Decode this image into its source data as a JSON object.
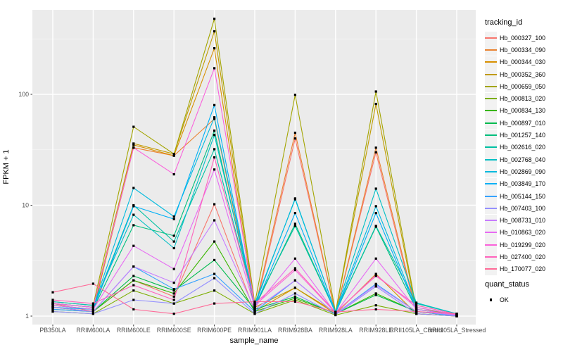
{
  "chart_data": {
    "type": "line",
    "title": "",
    "xlabel": "sample_name",
    "ylabel": "FPKM + 1",
    "y_scale": "log10",
    "y_ticks": [
      1,
      10,
      100
    ],
    "y_minor_ticks": [
      3.1623,
      31.623,
      316.23
    ],
    "ylim": [
      0.84,
      578
    ],
    "grid": true,
    "legend_position": "right",
    "legend_title": "tracking_id",
    "quant_legend": {
      "title": "quant_status",
      "items": [
        "OK"
      ]
    },
    "categories": [
      "PB350LA",
      "RRIM600LA",
      "RRIM600LE",
      "RRIM600SE",
      "RRIM600PE",
      "RRIM901LA",
      "RRIM928BA",
      "RRIM928LA",
      "RRIM928LE",
      "RRII105LA_Control",
      "RRII105LA_Stressed"
    ],
    "series": [
      {
        "name": "Hb_000327_100",
        "color": "#F8766D",
        "values": [
          1.3,
          1.1,
          2.1,
          1.5,
          10.2,
          1.1,
          40,
          1.05,
          30,
          1.05,
          1.0
        ]
      },
      {
        "name": "Hb_000334_090",
        "color": "#EA8331",
        "values": [
          1.25,
          1.15,
          33,
          28,
          60,
          1.15,
          45,
          1.05,
          33,
          1.1,
          1.0
        ]
      },
      {
        "name": "Hb_000344_030",
        "color": "#D89000",
        "values": [
          1.2,
          1.1,
          35,
          28,
          260,
          1.1,
          1.8,
          1.05,
          2.4,
          1.05,
          1.0
        ]
      },
      {
        "name": "Hb_000352_360",
        "color": "#C09B00",
        "values": [
          1.3,
          1.2,
          36,
          29,
          370,
          1.2,
          1.8,
          1.08,
          82,
          1.1,
          1.02
        ]
      },
      {
        "name": "Hb_000659_050",
        "color": "#A3A500",
        "values": [
          1.35,
          1.25,
          51,
          29,
          480,
          1.3,
          99,
          1.08,
          106,
          1.15,
          1.05
        ]
      },
      {
        "name": "Hb_000813_020",
        "color": "#7CAE00",
        "values": [
          1.1,
          1.05,
          1.7,
          1.3,
          1.7,
          1.05,
          1.4,
          1.02,
          1.25,
          1.05,
          1.0
        ]
      },
      {
        "name": "Hb_000834_130",
        "color": "#39B600",
        "values": [
          1.15,
          1.1,
          2.1,
          1.6,
          4.7,
          1.1,
          1.45,
          1.05,
          1.6,
          1.1,
          1.02
        ]
      },
      {
        "name": "Hb_000897_010",
        "color": "#00BB4E",
        "values": [
          1.2,
          1.1,
          2.3,
          1.7,
          3.2,
          1.15,
          1.5,
          1.05,
          1.55,
          1.1,
          1.0
        ]
      },
      {
        "name": "Hb_001257_140",
        "color": "#00BF7D",
        "values": [
          1.25,
          1.15,
          6.6,
          5.3,
          47,
          1.2,
          6.8,
          1.08,
          6.4,
          1.15,
          1.02
        ]
      },
      {
        "name": "Hb_002616_020",
        "color": "#00C1A3",
        "values": [
          1.3,
          1.2,
          10.0,
          4.7,
          32,
          1.25,
          6.5,
          1.08,
          6.5,
          1.3,
          1.05
        ]
      },
      {
        "name": "Hb_002768_040",
        "color": "#00BFC4",
        "values": [
          1.35,
          1.25,
          8.2,
          4.1,
          43,
          1.3,
          11.3,
          1.09,
          14.1,
          1.32,
          1.05
        ]
      },
      {
        "name": "Hb_002869_090",
        "color": "#00BADE",
        "values": [
          1.3,
          1.2,
          14.3,
          7.9,
          62,
          1.25,
          11.5,
          1.08,
          9.8,
          1.2,
          1.03
        ]
      },
      {
        "name": "Hb_003849_170",
        "color": "#00B0F6",
        "values": [
          1.2,
          1.15,
          9.8,
          7.5,
          80,
          1.2,
          8.5,
          1.06,
          8.5,
          1.15,
          1.02
        ]
      },
      {
        "name": "Hb_005144_150",
        "color": "#35A2FF",
        "values": [
          1.15,
          1.1,
          2.8,
          1.75,
          2.4,
          1.1,
          2.1,
          1.05,
          1.95,
          1.1,
          1.0
        ]
      },
      {
        "name": "Hb_007403_100",
        "color": "#9590FF",
        "values": [
          1.1,
          1.05,
          1.4,
          1.3,
          2.2,
          1.05,
          1.6,
          1.03,
          1.85,
          1.05,
          1.0
        ]
      },
      {
        "name": "Hb_008731_010",
        "color": "#C77CFF",
        "values": [
          1.2,
          1.1,
          2.8,
          2.0,
          7.3,
          1.15,
          2.1,
          1.05,
          1.9,
          1.1,
          1.02
        ]
      },
      {
        "name": "Hb_010863_020",
        "color": "#E76BF3",
        "values": [
          1.25,
          1.15,
          4.3,
          2.66,
          21,
          1.2,
          3.3,
          1.06,
          3.3,
          1.15,
          1.02
        ]
      },
      {
        "name": "Hb_019299_020",
        "color": "#FA62DB",
        "values": [
          1.3,
          1.2,
          33,
          19,
          172,
          1.25,
          2.6,
          1.07,
          2.35,
          1.2,
          1.03
        ]
      },
      {
        "name": "Hb_027400_020",
        "color": "#FF62BC",
        "values": [
          1.4,
          1.3,
          1.9,
          1.4,
          27,
          1.3,
          2.7,
          1.08,
          2.3,
          1.25,
          1.04
        ]
      },
      {
        "name": "Hb_170077_020",
        "color": "#FF6A98",
        "values": [
          1.64,
          1.96,
          1.15,
          1.05,
          1.3,
          1.35,
          1.35,
          1.09,
          1.15,
          1.1,
          1.05
        ]
      }
    ]
  },
  "colors": {
    "panel_bg": "#EBEBEB",
    "grid_major": "#FFFFFF",
    "grid_minor": "#F7F7F7",
    "tick_text": "#4D4D4D",
    "tick_mark": "#333333",
    "axis_title": "#000000",
    "point": "#000000",
    "legend_key_bg": "#F2F2F2"
  }
}
